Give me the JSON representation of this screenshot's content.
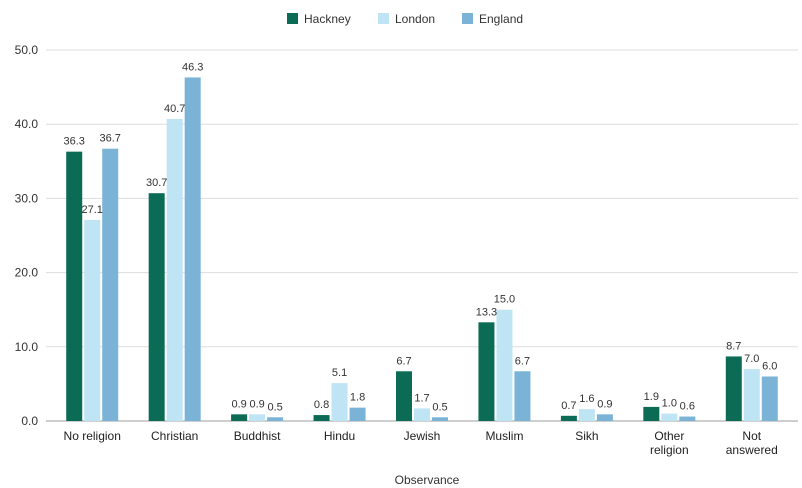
{
  "chart_data": {
    "type": "bar",
    "title": "",
    "xlabel": "Observance",
    "ylabel": "",
    "ylim": [
      0,
      50
    ],
    "yticks": [
      0,
      10,
      20,
      30,
      40,
      50
    ],
    "ytick_labels": [
      "0.0",
      "10.0",
      "20.0",
      "30.0",
      "40.0",
      "50.0"
    ],
    "grid": true,
    "legend_position": "top-center",
    "categories": [
      [
        "No religion"
      ],
      [
        "Christian"
      ],
      [
        "Buddhist"
      ],
      [
        "Hindu"
      ],
      [
        "Jewish"
      ],
      [
        "Muslim"
      ],
      [
        "Sikh"
      ],
      [
        "Other",
        "religion"
      ],
      [
        "Not",
        "answered"
      ]
    ],
    "series": [
      {
        "name": "Hackney",
        "color": "#0b6b55",
        "values": [
          36.3,
          30.7,
          0.9,
          0.8,
          6.7,
          13.3,
          0.7,
          1.9,
          8.7
        ],
        "labels": [
          "36.3",
          "30.7",
          "0.9",
          "0.8",
          "6.7",
          "13.3",
          "0.7",
          "1.9",
          "8.7"
        ]
      },
      {
        "name": "London",
        "color": "#bfe4f3",
        "values": [
          27.1,
          40.7,
          0.9,
          5.1,
          1.7,
          15.0,
          1.6,
          1.0,
          7.0
        ],
        "labels": [
          "27.1",
          "40.7",
          "0.9",
          "5.1",
          "1.7",
          "15.0",
          "1.6",
          "1.0",
          "7.0"
        ]
      },
      {
        "name": "England",
        "color": "#7ab3d6",
        "values": [
          36.7,
          46.3,
          0.5,
          1.8,
          0.5,
          6.7,
          0.9,
          0.6,
          6.0
        ],
        "labels": [
          "36.7",
          "46.3",
          "0.5",
          "1.8",
          "0.5",
          "6.7",
          "0.9",
          "0.6",
          "6.0"
        ]
      }
    ]
  }
}
